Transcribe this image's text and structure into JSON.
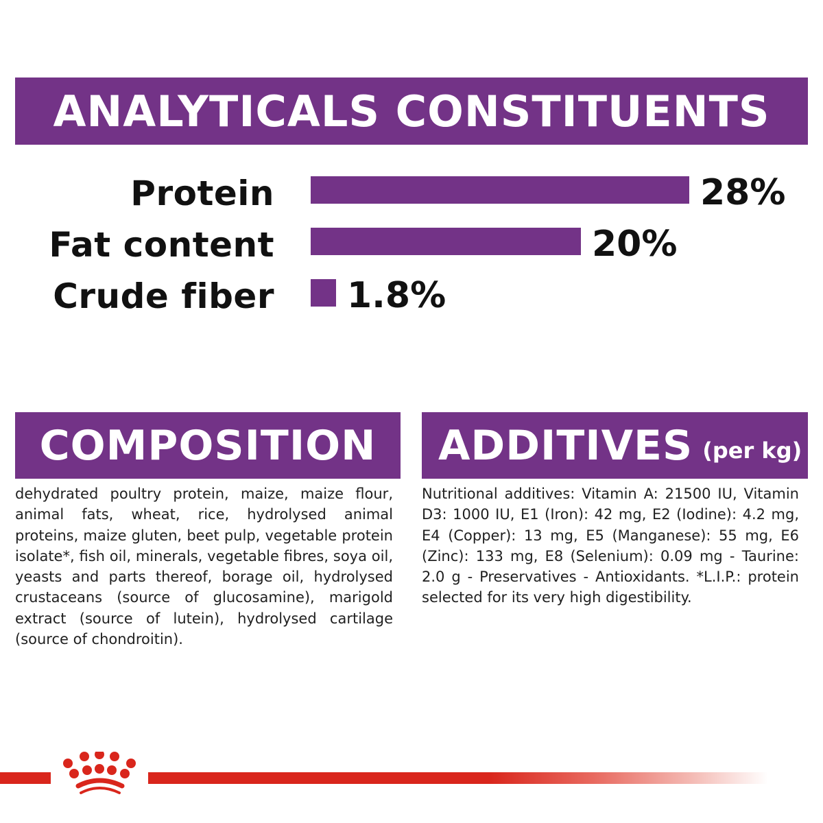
{
  "analytics": {
    "title": "ANALYTICALS CONSTITUENTS",
    "rows": [
      {
        "label": "Protein",
        "value": "28%",
        "percent": 28
      },
      {
        "label": "Fat content",
        "value": "20%",
        "percent": 20
      },
      {
        "label": "Crude fiber",
        "value": "1.8%",
        "percent": 1.8
      }
    ]
  },
  "composition": {
    "title": "COMPOSITION",
    "text": "dehydrated poultry protein, maize, maize flour, animal fats, wheat, rice, hydrolysed animal proteins, maize gluten, beet pulp, vegetable protein isolate*, fish oil, minerals, vegetable fibres, soya oil, yeasts and parts thereof, borage oil, hydrolysed crustaceans (source of glucosamine), marigold extract (source of lutein), hydrolysed cartilage (source of chondroitin)."
  },
  "additives": {
    "title": "ADDITIVES",
    "title_suffix": "(per kg)",
    "text": "Nutritional additives: Vitamin A: 21500 IU, Vitamin D3: 1000 IU, E1 (Iron): 42 mg, E2 (Iodine): 4.2 mg, E4 (Copper): 13 mg, E5 (Manganese): 55 mg, E6 (Zinc): 133 mg, E8 (Selenium): 0.09 mg - Taurine: 2.0 g - Preservatives - Antioxidants. *L.I.P.: protein selected for its very high digestibility."
  },
  "footer": {
    "logo_icon": "crown-icon"
  },
  "colors": {
    "brand_purple": "#733387",
    "brand_red": "#d9261c",
    "text": "#1a1a1a"
  },
  "chart_data": {
    "type": "bar",
    "orientation": "horizontal",
    "title": "ANALYTICALS CONSTITUENTS",
    "categories": [
      "Protein",
      "Fat content",
      "Crude fiber"
    ],
    "values": [
      28,
      20,
      1.8
    ],
    "value_labels": [
      "28%",
      "20%",
      "1.8%"
    ],
    "xlabel": "",
    "ylabel": "",
    "unit": "%",
    "grid": false,
    "legend": false,
    "bar_color": "#733387"
  }
}
